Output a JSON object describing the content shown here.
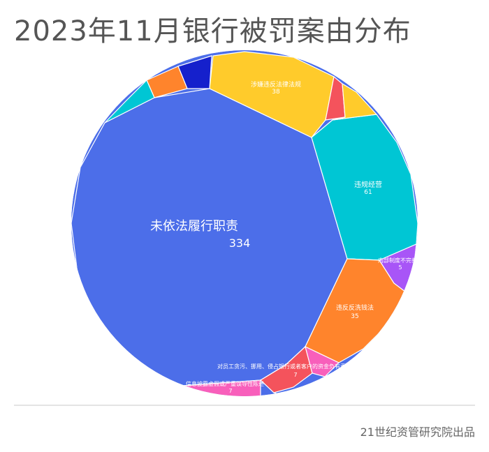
{
  "title": "2023年11月银行被罚案由分布",
  "source": "21世纪资管研究院出品",
  "chart_data": {
    "type": "voronoi-treemap",
    "series": [
      {
        "name": "未依法履行职责",
        "value": 334,
        "color": "#4c6ee9"
      },
      {
        "name": "违规经营",
        "value": 61,
        "color": "#00c6d4"
      },
      {
        "name": "涉嫌违反法律法规",
        "value": 38,
        "color": "#ffcb2b"
      },
      {
        "name": "违反反洗钱法",
        "value": 35,
        "color": "#ff842c"
      },
      {
        "name": "信息披露虚假或严重误导性陈述",
        "value": 7,
        "color": "#f85fbb"
      },
      {
        "name": "对员工贪污、挪用、侵占银行或者客户的资金负有责任",
        "value": 7,
        "color": "#f4535c"
      },
      {
        "name": "内部制度不完善",
        "value": 5,
        "color": "#a855f7"
      },
      {
        "value": null,
        "color": "#1520cc"
      },
      {
        "value": null,
        "color": "#ff842c"
      },
      {
        "value": null,
        "color": "#00c6d4"
      },
      {
        "value": null,
        "color": "#f4535c"
      },
      {
        "value": null,
        "color": "#ffcb2b"
      },
      {
        "value": null,
        "color": "#f85fbb"
      },
      {
        "value": null,
        "color": "#4c6ee9"
      }
    ]
  }
}
